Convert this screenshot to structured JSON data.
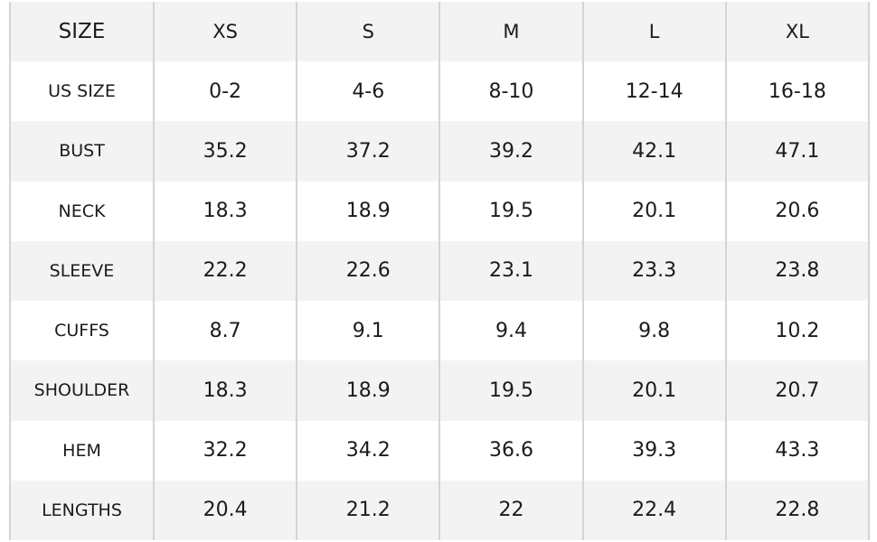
{
  "table": {
    "header_label": "SIZE",
    "columns": [
      "XS",
      "S",
      "M",
      "L",
      "XL"
    ],
    "rows": [
      {
        "label": "US SIZE",
        "values": [
          "0-2",
          "4-6",
          "8-10",
          "12-14",
          "16-18"
        ]
      },
      {
        "label": "BUST",
        "values": [
          "35.2",
          "37.2",
          "39.2",
          "42.1",
          "47.1"
        ]
      },
      {
        "label": "NECK",
        "values": [
          "18.3",
          "18.9",
          "19.5",
          "20.1",
          "20.6"
        ]
      },
      {
        "label": "SLEEVE",
        "values": [
          "22.2",
          "22.6",
          "23.1",
          "23.3",
          "23.8"
        ]
      },
      {
        "label": "CUFFS",
        "values": [
          "8.7",
          "9.1",
          "9.4",
          "9.8",
          "10.2"
        ]
      },
      {
        "label": "SHOULDER",
        "values": [
          "18.3",
          "18.9",
          "19.5",
          "20.1",
          "20.7"
        ]
      },
      {
        "label": "HEM",
        "values": [
          "32.2",
          "34.2",
          "36.6",
          "39.3",
          "43.3"
        ]
      },
      {
        "label": "LENGTHS",
        "values": [
          "20.4",
          "21.2",
          "22",
          "22.4",
          "22.8"
        ]
      }
    ]
  },
  "colors": {
    "shaded_row": "#f3f3f3",
    "plain_row": "#ffffff",
    "grid_line": "#d4d4d4",
    "text": "#1b1b1b"
  }
}
